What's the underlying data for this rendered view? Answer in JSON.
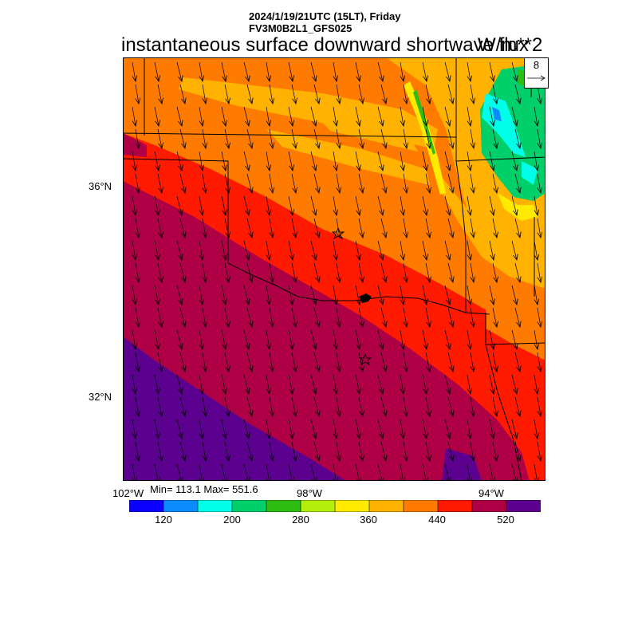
{
  "header": {
    "valid_time": "2024/1/19/21UTC (15LT), Friday",
    "model": "FV3M0B2L1_GFS025"
  },
  "title": "instantaneous surface downward shortwave flux",
  "units": "W/m**2",
  "vector_reference": {
    "value": "8"
  },
  "axes": {
    "lat_labels": [
      "36°N",
      "32°N"
    ],
    "lon_labels": [
      "102°W",
      "98°W",
      "94°W"
    ]
  },
  "stats": {
    "text": "Min= 113.1 Max= 551.6"
  },
  "colorbar": {
    "colors": [
      "#0b00ff",
      "#0a8cff",
      "#00ffe9",
      "#00cf6a",
      "#2ebd12",
      "#b3ee0c",
      "#ffea00",
      "#ffb300",
      "#ff7b00",
      "#ff1a00",
      "#b00045",
      "#5c008f"
    ],
    "labels": [
      "120",
      "200",
      "280",
      "360",
      "440",
      "520"
    ]
  },
  "colors": {
    "arrow": "#000000",
    "boundary": "#000000"
  }
}
